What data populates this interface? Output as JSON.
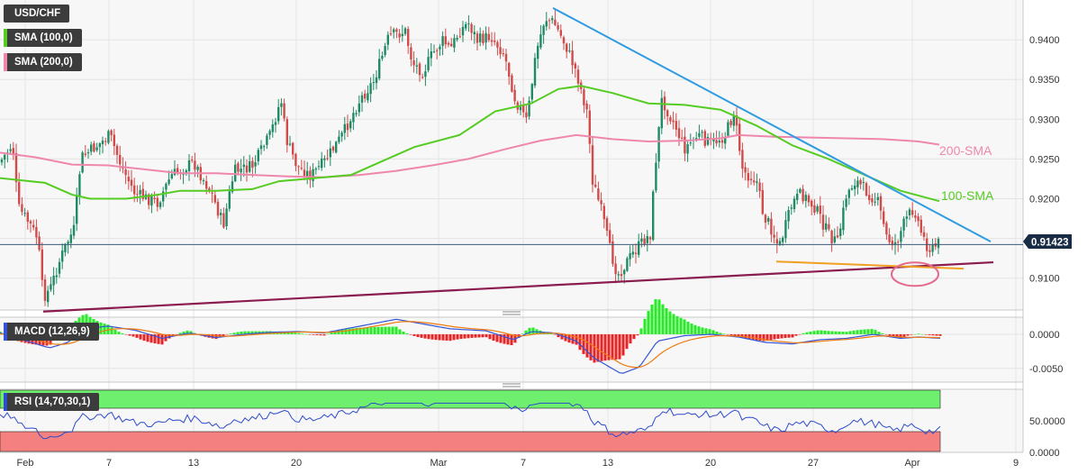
{
  "legend": {
    "symbol": "USD/CHF",
    "sma100": "SMA (100,0)",
    "sma200": "SMA (200,0)",
    "macd": "MACD (12,26,9)",
    "rsi": "RSI (14,70,30,1)"
  },
  "colors": {
    "sma100": "#55cc22",
    "sma200": "#ef87ad",
    "up_candle": "#1f8a63",
    "down_candle": "#d14b4b",
    "resistance_line": "#2f9be0",
    "support_line": "#8b1c4f",
    "orange_line": "#f0a020",
    "macd_line": "#3455d8",
    "signal_line": "#f07a10",
    "hist_up": "#22ee22",
    "hist_down": "#ee2222",
    "rsi_line": "#2d4ccc",
    "rsi_overbought": "#6ef06e",
    "rsi_oversold": "#f58080",
    "ellipse": "#e46a8c"
  },
  "annotations": {
    "sma200_label": "200-SMA",
    "sma100_label": "100-SMA"
  },
  "chart_data": [
    {
      "type": "candlestick",
      "symbol": "USD/CHF",
      "price_axis_ticks": [
        "0.9400",
        "0.9350",
        "0.9300",
        "0.9250",
        "0.9200",
        "0.9150",
        "0.9100"
      ],
      "ylim": [
        0.906,
        0.945
      ],
      "last_price": "0.91423",
      "x_tick_labels": [
        "Feb",
        "7",
        "13",
        "20",
        "Mar",
        "7",
        "13",
        "20",
        "27",
        "Apr",
        "9"
      ],
      "series": [
        {
          "name": "SMA (100,0)",
          "points": [
            [
              0,
              0.9226
            ],
            [
              50,
              0.922
            ],
            [
              80,
              0.9205
            ],
            [
              100,
              0.92
            ],
            [
              140,
              0.92
            ],
            [
              175,
              0.9205
            ],
            [
              200,
              0.921
            ],
            [
              240,
              0.921
            ],
            [
              280,
              0.9212
            ],
            [
              310,
              0.9222
            ],
            [
              350,
              0.9226
            ],
            [
              390,
              0.923
            ],
            [
              420,
              0.9245
            ],
            [
              460,
              0.9265
            ],
            [
              510,
              0.928
            ],
            [
              550,
              0.931
            ],
            [
              590,
              0.932
            ],
            [
              620,
              0.9338
            ],
            [
              645,
              0.9342
            ],
            [
              680,
              0.9333
            ],
            [
              720,
              0.932
            ],
            [
              760,
              0.9318
            ],
            [
              800,
              0.9312
            ],
            [
              840,
              0.9292
            ],
            [
              880,
              0.9267
            ],
            [
              920,
              0.925
            ],
            [
              960,
              0.923
            ],
            [
              1000,
              0.921
            ],
            [
              1043,
              0.9197
            ]
          ]
        },
        {
          "name": "SMA (200,0)",
          "points": [
            [
              0,
              0.9258
            ],
            [
              40,
              0.9252
            ],
            [
              80,
              0.9243
            ],
            [
              120,
              0.9242
            ],
            [
              160,
              0.9237
            ],
            [
              200,
              0.9232
            ],
            [
              240,
              0.9232
            ],
            [
              280,
              0.923
            ],
            [
              320,
              0.9228
            ],
            [
              360,
              0.9227
            ],
            [
              400,
              0.923
            ],
            [
              440,
              0.9235
            ],
            [
              480,
              0.9242
            ],
            [
              520,
              0.925
            ],
            [
              560,
              0.9262
            ],
            [
              600,
              0.9273
            ],
            [
              640,
              0.928
            ],
            [
              680,
              0.9275
            ],
            [
              720,
              0.9272
            ],
            [
              760,
              0.9273
            ],
            [
              800,
              0.9276
            ],
            [
              820,
              0.928
            ],
            [
              860,
              0.9278
            ],
            [
              900,
              0.9277
            ],
            [
              940,
              0.9276
            ],
            [
              980,
              0.9275
            ],
            [
              1020,
              0.9272
            ],
            [
              1043,
              0.9268
            ]
          ]
        }
      ],
      "trendlines": [
        {
          "name": "resistance",
          "from": [
            614,
            0.944
          ],
          "to": [
            1100,
            0.9146
          ]
        },
        {
          "name": "support",
          "from": [
            48,
            0.9058
          ],
          "to": [
            1103,
            0.912
          ]
        },
        {
          "name": "horizontal support",
          "from": [
            862,
            0.9121
          ],
          "to": [
            1070,
            0.9112
          ]
        }
      ],
      "ellipse_center": [
        1016,
        0.9105
      ]
    },
    {
      "type": "line",
      "name": "MACD (12,26,9)",
      "y_ticks": [
        "0.0000",
        "-0.0050"
      ],
      "ylim": [
        -0.007,
        0.0025
      ]
    },
    {
      "type": "line",
      "name": "RSI (14,70,30,1)",
      "y_ticks": [
        "50.0000",
        "0.0000"
      ],
      "ylim": [
        0,
        100
      ],
      "overbought": 70,
      "oversold": 30
    }
  ]
}
